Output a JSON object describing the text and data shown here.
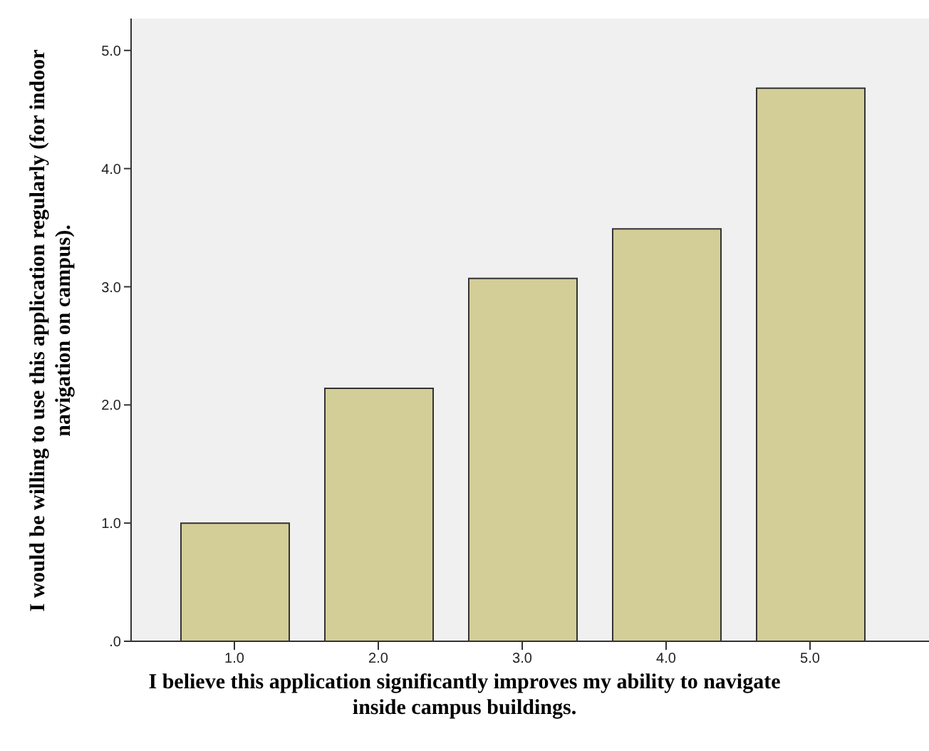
{
  "chart_data": {
    "type": "bar",
    "xlabel": "I believe this application significantly improves my ability to navigate inside campus buildings.",
    "ylabel": "I would be willing to use this application regularly (for indoor navigation on campus).",
    "categories": [
      "1.0",
      "2.0",
      "3.0",
      "4.0",
      "5.0"
    ],
    "values": [
      1.0,
      2.14,
      3.07,
      3.49,
      4.68
    ],
    "color": "#d3ce97",
    "ylim": [
      0,
      5.27
    ],
    "yticks": [
      {
        "value": 0,
        "label": ".0"
      },
      {
        "value": 1,
        "label": "1.0"
      },
      {
        "value": 2,
        "label": "2.0"
      },
      {
        "value": 3,
        "label": "3.0"
      },
      {
        "value": 4,
        "label": "4.0"
      },
      {
        "value": 5,
        "label": "5.0"
      }
    ],
    "grid": false,
    "legend": false
  }
}
